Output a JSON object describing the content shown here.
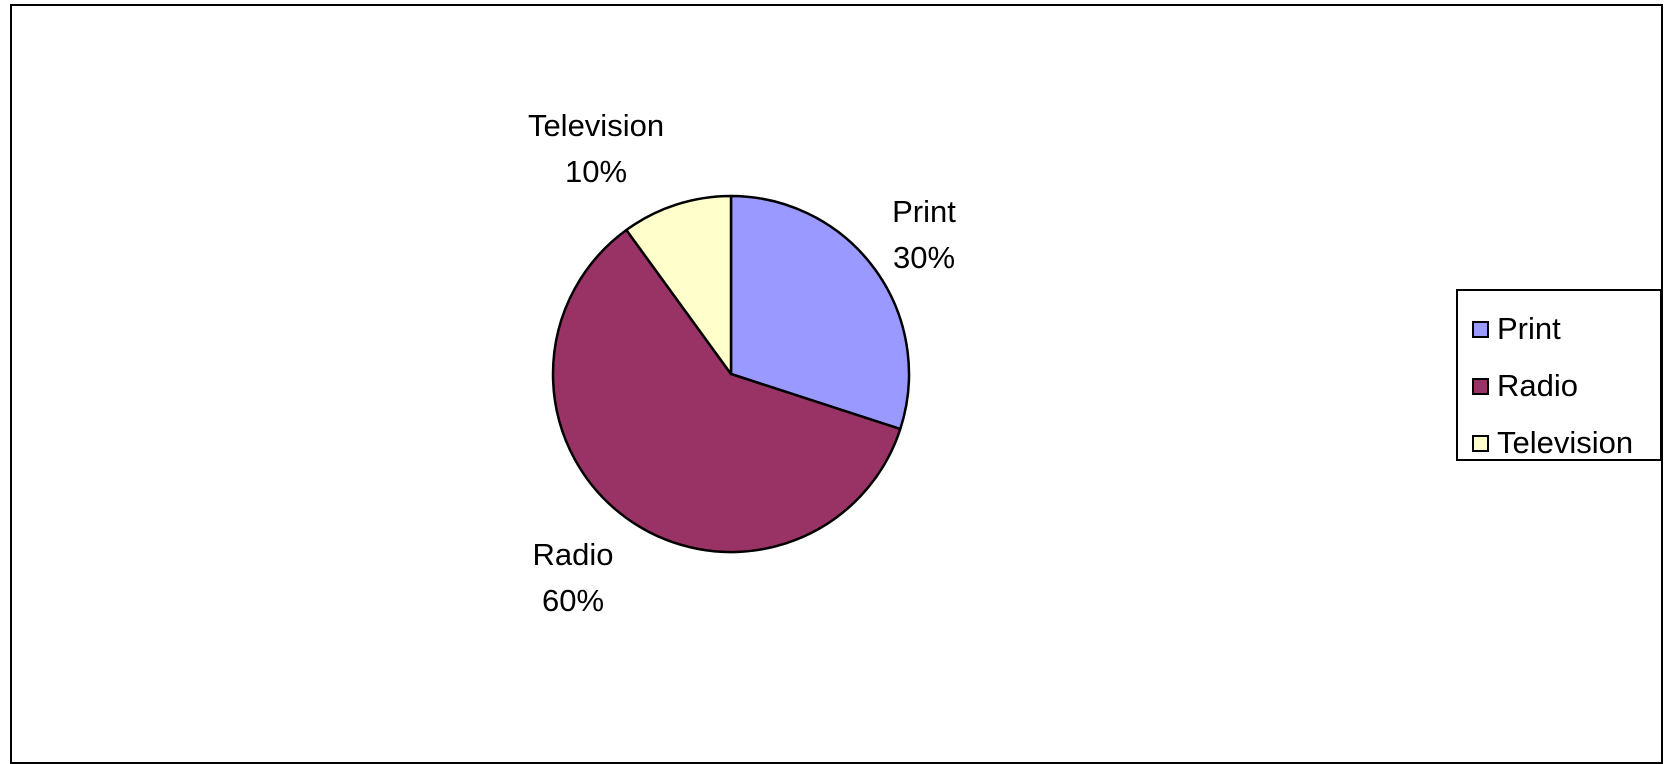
{
  "chart_data": {
    "type": "pie",
    "categories": [
      "Print",
      "Radio",
      "Television"
    ],
    "values": [
      30,
      60,
      10
    ],
    "value_labels": [
      "30%",
      "60%",
      "10%"
    ],
    "colors": [
      "#9999ff",
      "#993366",
      "#ffffcc"
    ],
    "title": "",
    "legend_position": "right",
    "start_angle_deg": 0,
    "direction": "clockwise"
  },
  "legend": {
    "items": [
      {
        "label": "Print",
        "color": "#9999ff"
      },
      {
        "label": "Radio",
        "color": "#993366"
      },
      {
        "label": "Television",
        "color": "#ffffcc"
      }
    ]
  }
}
